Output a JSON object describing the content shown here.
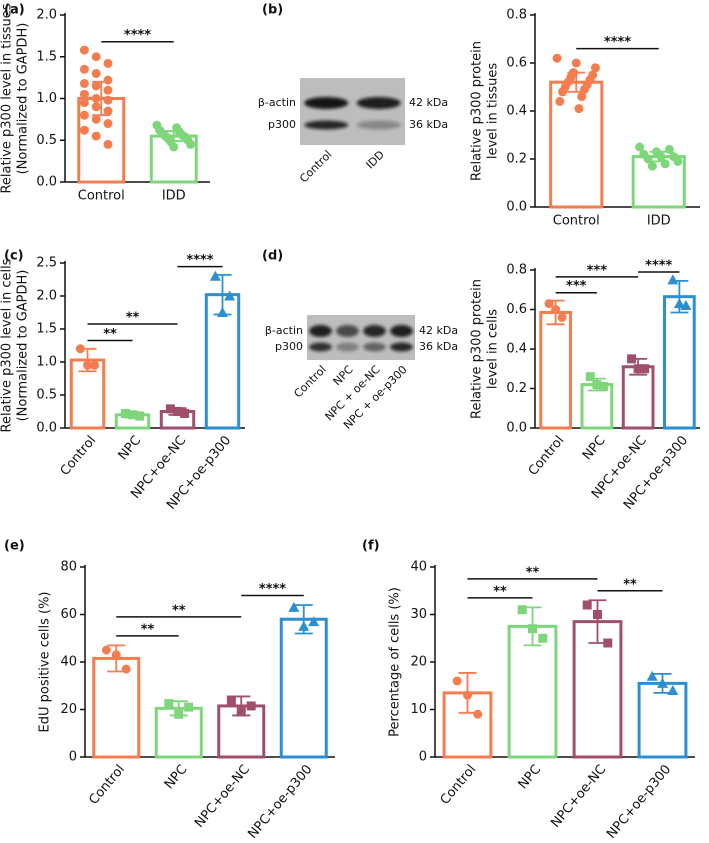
{
  "panel_labels": [
    "(a)",
    "(b)",
    "(c)",
    "(d)",
    "(e)",
    "(f)"
  ],
  "blots": [
    {
      "rows": [
        "β-actin",
        "p300"
      ],
      "sizes": [
        "42 kDa",
        "36 kDa"
      ],
      "lanes": [
        "Control",
        "IDD"
      ]
    },
    {
      "rows": [
        "β-actin",
        "p300"
      ],
      "sizes": [
        "42 kDa",
        "36 kDa"
      ],
      "lanes": [
        "Control",
        "NPC",
        "NPC + oe-NC",
        "NPC + oe-p300"
      ]
    }
  ],
  "chart_data": [
    {
      "type": "bar",
      "ylabel": [
        "Relative p300 level in tissues",
        "(Normalized to GAPDH)"
      ],
      "categories": [
        "Control",
        "IDD"
      ],
      "colors": [
        "#f47d4f",
        "#7ed67a"
      ],
      "values": [
        1.0,
        0.55
      ],
      "errors": [
        0.2,
        0.06
      ],
      "points": [
        [
          1.58,
          1.5,
          1.42,
          1.35,
          1.3,
          1.22,
          1.18,
          1.15,
          1.1,
          1.05,
          1.0,
          0.98,
          0.95,
          0.9,
          0.85,
          0.8,
          0.75,
          0.7,
          0.62,
          0.55,
          0.45
        ],
        [
          0.68,
          0.65,
          0.62,
          0.6,
          0.58,
          0.56,
          0.55,
          0.54,
          0.52,
          0.5,
          0.48,
          0.45,
          0.42
        ]
      ],
      "ylim": [
        0,
        2
      ],
      "yticks": [
        {
          "value": 0,
          "label": "0.0"
        },
        0.5,
        {
          "value": 1,
          "label": "1.0"
        },
        1.5,
        {
          "value": 2,
          "label": "2.0"
        }
      ],
      "significance": [
        {
          "label": "****",
          "between": [
            "Control",
            "IDD"
          ]
        }
      ]
    },
    {
      "type": "bar",
      "ylabel": [
        "Relative p300 protein",
        "level in tissues"
      ],
      "categories": [
        "Control",
        "IDD"
      ],
      "colors": [
        "#f47d4f",
        "#7ed67a"
      ],
      "values": [
        0.52,
        0.21
      ],
      "errors": [
        0.04,
        0.02
      ],
      "points": [
        [
          0.62,
          0.6,
          0.58,
          0.56,
          0.55,
          0.54,
          0.53,
          0.52,
          0.51,
          0.5,
          0.49,
          0.48,
          0.46,
          0.44,
          0.41
        ],
        [
          0.25,
          0.24,
          0.23,
          0.22,
          0.21,
          0.21,
          0.2,
          0.19,
          0.18,
          0.17
        ]
      ],
      "ylim": [
        0,
        0.8
      ],
      "yticks": [
        {
          "value": 0,
          "label": "0.0"
        },
        0.2,
        0.4,
        0.6,
        0.8
      ],
      "significance": [
        {
          "label": "****",
          "between": [
            "Control",
            "IDD"
          ]
        }
      ]
    },
    {
      "type": "bar",
      "ylabel": [
        "Relative p300 level in cells",
        "(Normalized to GAPDH)"
      ],
      "categories": [
        "Control",
        "NPC",
        "NPC+oe-NC",
        "NPC+oe-p300"
      ],
      "colors": [
        "#f47d4f",
        "#7ed67a",
        "#a04f68",
        "#2b8fd1"
      ],
      "values": [
        1.03,
        0.2,
        0.25,
        2.02
      ],
      "errors": [
        0.17,
        0.04,
        0.05,
        0.3
      ],
      "points": [
        [
          1.2,
          0.95,
          0.95
        ],
        [
          0.22,
          0.2,
          0.18
        ],
        [
          0.29,
          0.25,
          0.22
        ],
        [
          2.3,
          1.75,
          2.0
        ]
      ],
      "ylim": [
        0,
        2.5
      ],
      "yticks": [
        {
          "value": 0,
          "label": "0.0"
        },
        0.5,
        {
          "value": 1,
          "label": "1.0"
        },
        1.5,
        {
          "value": 2,
          "label": "2.0"
        },
        2.5
      ],
      "significance": [
        {
          "label": "**",
          "between": [
            "Control",
            "NPC"
          ]
        },
        {
          "label": "**",
          "between": [
            "Control",
            "NPC+oe-NC"
          ]
        },
        {
          "label": "****",
          "between": [
            "NPC+oe-NC",
            "NPC+oe-p300"
          ]
        }
      ]
    },
    {
      "type": "bar",
      "ylabel": [
        "Relative p300 protein",
        "level in cells"
      ],
      "categories": [
        "Control",
        "NPC",
        "NPC+oe-NC",
        "NPC+oe-p300"
      ],
      "colors": [
        "#f47d4f",
        "#7ed67a",
        "#a04f68",
        "#2b8fd1"
      ],
      "values": [
        0.585,
        0.22,
        0.31,
        0.665
      ],
      "errors": [
        0.06,
        0.03,
        0.04,
        0.08
      ],
      "points": [
        [
          0.63,
          0.6,
          0.56
        ],
        [
          0.26,
          0.22,
          0.21
        ],
        [
          0.35,
          0.3,
          0.3
        ],
        [
          0.75,
          0.63,
          0.62
        ]
      ],
      "ylim": [
        0,
        0.8
      ],
      "yticks": [
        {
          "value": 0,
          "label": "0.0"
        },
        0.2,
        0.4,
        0.6,
        0.8
      ],
      "significance": [
        {
          "label": "***",
          "between": [
            "Control",
            "NPC"
          ]
        },
        {
          "label": "***",
          "between": [
            "Control",
            "NPC+oe-NC"
          ]
        },
        {
          "label": "****",
          "between": [
            "NPC+oe-NC",
            "NPC+oe-p300"
          ]
        }
      ]
    },
    {
      "type": "bar",
      "ylabel": [
        "EdU positive cells (%)"
      ],
      "categories": [
        "Control",
        "NPC",
        "NPC+oe-NC",
        "NPC+oe-p300"
      ],
      "colors": [
        "#f47d4f",
        "#7ed67a",
        "#a04f68",
        "#2b8fd1"
      ],
      "values": [
        41.5,
        20.5,
        21.5,
        58
      ],
      "errors": [
        5.5,
        3,
        4,
        6
      ],
      "points": [
        [
          45,
          43,
          37
        ],
        [
          22.5,
          18,
          21
        ],
        [
          24,
          19,
          21.5
        ],
        [
          63,
          55,
          57
        ]
      ],
      "ylim": [
        0,
        80
      ],
      "yticks": [
        0,
        20,
        40,
        60,
        80
      ],
      "significance": [
        {
          "label": "**",
          "between": [
            "Control",
            "NPC"
          ]
        },
        {
          "label": "**",
          "between": [
            "Control",
            "NPC+oe-NC"
          ]
        },
        {
          "label": "****",
          "between": [
            "NPC+oe-NC",
            "NPC+oe-p300"
          ]
        }
      ]
    },
    {
      "type": "bar",
      "ylabel": [
        "Percentage of cells (%)"
      ],
      "categories": [
        "Control",
        "NPC",
        "NPC+oe-NC",
        "NPC+oe-p300"
      ],
      "colors": [
        "#f47d4f",
        "#7ed67a",
        "#a04f68",
        "#2b8fd1"
      ],
      "values": [
        13.5,
        27.5,
        28.5,
        15.5
      ],
      "errors": [
        4.2,
        4,
        4.5,
        2
      ],
      "points": [
        [
          16,
          13,
          9
        ],
        [
          31,
          27,
          25
        ],
        [
          32,
          30,
          24
        ],
        [
          17,
          15.5,
          14
        ]
      ],
      "ylim": [
        0,
        40
      ],
      "yticks": [
        0,
        10,
        20,
        30,
        40
      ],
      "significance": [
        {
          "label": "**",
          "between": [
            "Control",
            "NPC"
          ]
        },
        {
          "label": "**",
          "between": [
            "Control",
            "NPC+oe-NC"
          ]
        },
        {
          "label": "**",
          "between": [
            "NPC+oe-NC",
            "NPC+oe-p300"
          ]
        }
      ]
    }
  ]
}
